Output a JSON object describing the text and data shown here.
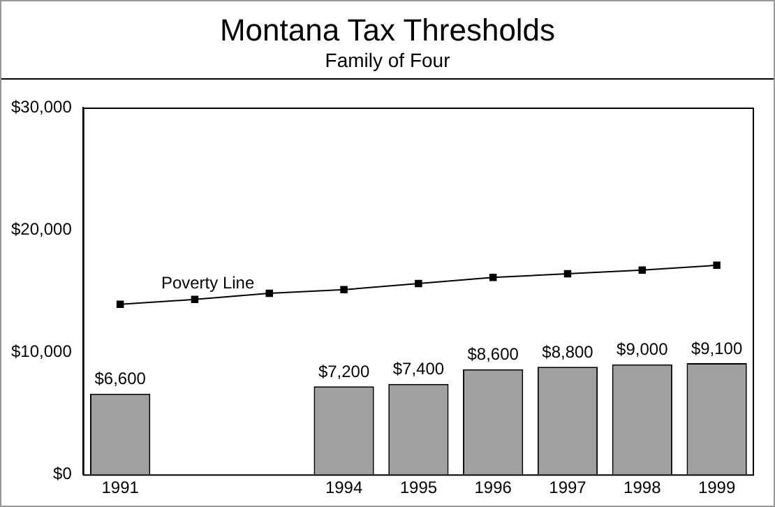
{
  "chart_data": {
    "type": "bar",
    "title": "Montana Tax Thresholds",
    "subtitle": "Family of Four",
    "categories": [
      "1991",
      null,
      null,
      "1994",
      "1995",
      "1996",
      "1997",
      "1998",
      "1999"
    ],
    "series": [
      {
        "color": "#a0a0a0",
        "values": [
          6600,
          null,
          null,
          7200,
          7400,
          8600,
          8800,
          9000,
          9100
        ],
        "value_labels": [
          "$6,600",
          null,
          null,
          "$7,200",
          "$7,400",
          "$8,600",
          "$8,800",
          "$9,000",
          "$9,100"
        ]
      },
      {
        "type": "line",
        "name": "Poverty Line",
        "color": "#000000",
        "values": [
          13900,
          14300,
          14800,
          15100,
          15600,
          16100,
          16400,
          16700,
          17100
        ]
      }
    ],
    "ylim": [
      0,
      30000
    ],
    "yticks": [
      {
        "value": 0,
        "label": "$0"
      },
      {
        "value": 10000,
        "label": "$10,000"
      },
      {
        "value": 20000,
        "label": "$20,000"
      },
      {
        "value": 30000,
        "label": "$30,000"
      }
    ],
    "grid": false,
    "legend": false,
    "marker": "square",
    "line_style": "solid"
  }
}
